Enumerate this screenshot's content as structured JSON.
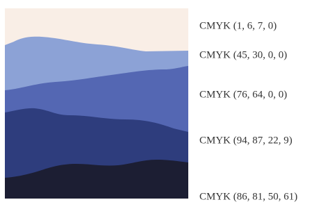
{
  "swatches": [
    {
      "label": "CMYK (1, 6, 7, 0)",
      "color": "#f9eee6"
    },
    {
      "label": "CMYK (45, 30, 0, 0)",
      "color": "#8ca2d6"
    },
    {
      "label": "CMYK (76, 64, 0, 0)",
      "color": "#5467b3"
    },
    {
      "label": "CMYK (94, 87, 22, 9)",
      "color": "#2e3d7d"
    },
    {
      "label": "CMYK (86, 81, 50, 61)",
      "color": "#1c1e33"
    }
  ]
}
